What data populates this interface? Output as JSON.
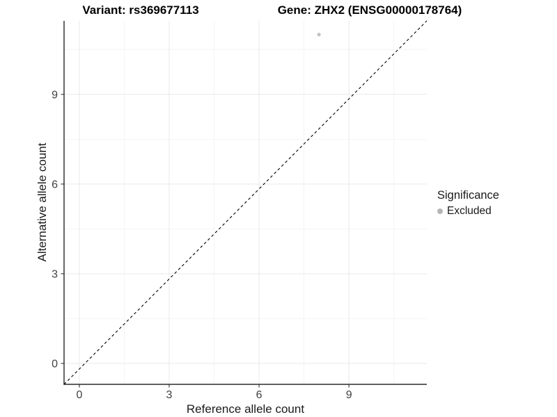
{
  "titles": {
    "variant": "Variant: rs369677113",
    "gene": "Gene: ZHX2 (ENSG00000178764)"
  },
  "chart_data": {
    "type": "scatter",
    "xlabel": "Reference allele count",
    "ylabel": "Alternative allele count",
    "xlim": [
      -0.51,
      11.6
    ],
    "ylim": [
      -0.7,
      11.46
    ],
    "x_ticks": [
      0,
      3,
      6,
      9
    ],
    "y_ticks": [
      0,
      3,
      6,
      9
    ],
    "x_minor_ticks": [
      1.5,
      4.5,
      7.5,
      10.5
    ],
    "y_minor_ticks": [
      1.5,
      4.5,
      7.5,
      10.5
    ],
    "grid": "major and minor gridlines on white panel",
    "colors": {
      "grid_major": "#e9e9e9",
      "grid_minor": "#f4f4f4",
      "axis_line": "#000000",
      "tick_label": "#404040"
    },
    "series": [
      {
        "name": "Excluded",
        "color": "#c3c3c3",
        "points": [
          [
            8,
            11
          ]
        ]
      }
    ],
    "reference_line": {
      "type": "identity",
      "slope": 1,
      "intercept": 0,
      "style": "dashed",
      "color": "#000000"
    },
    "legend": {
      "position": "right",
      "title": "Significance",
      "entries": [
        {
          "label": "Excluded",
          "color": "#b5b5b5"
        }
      ]
    }
  }
}
